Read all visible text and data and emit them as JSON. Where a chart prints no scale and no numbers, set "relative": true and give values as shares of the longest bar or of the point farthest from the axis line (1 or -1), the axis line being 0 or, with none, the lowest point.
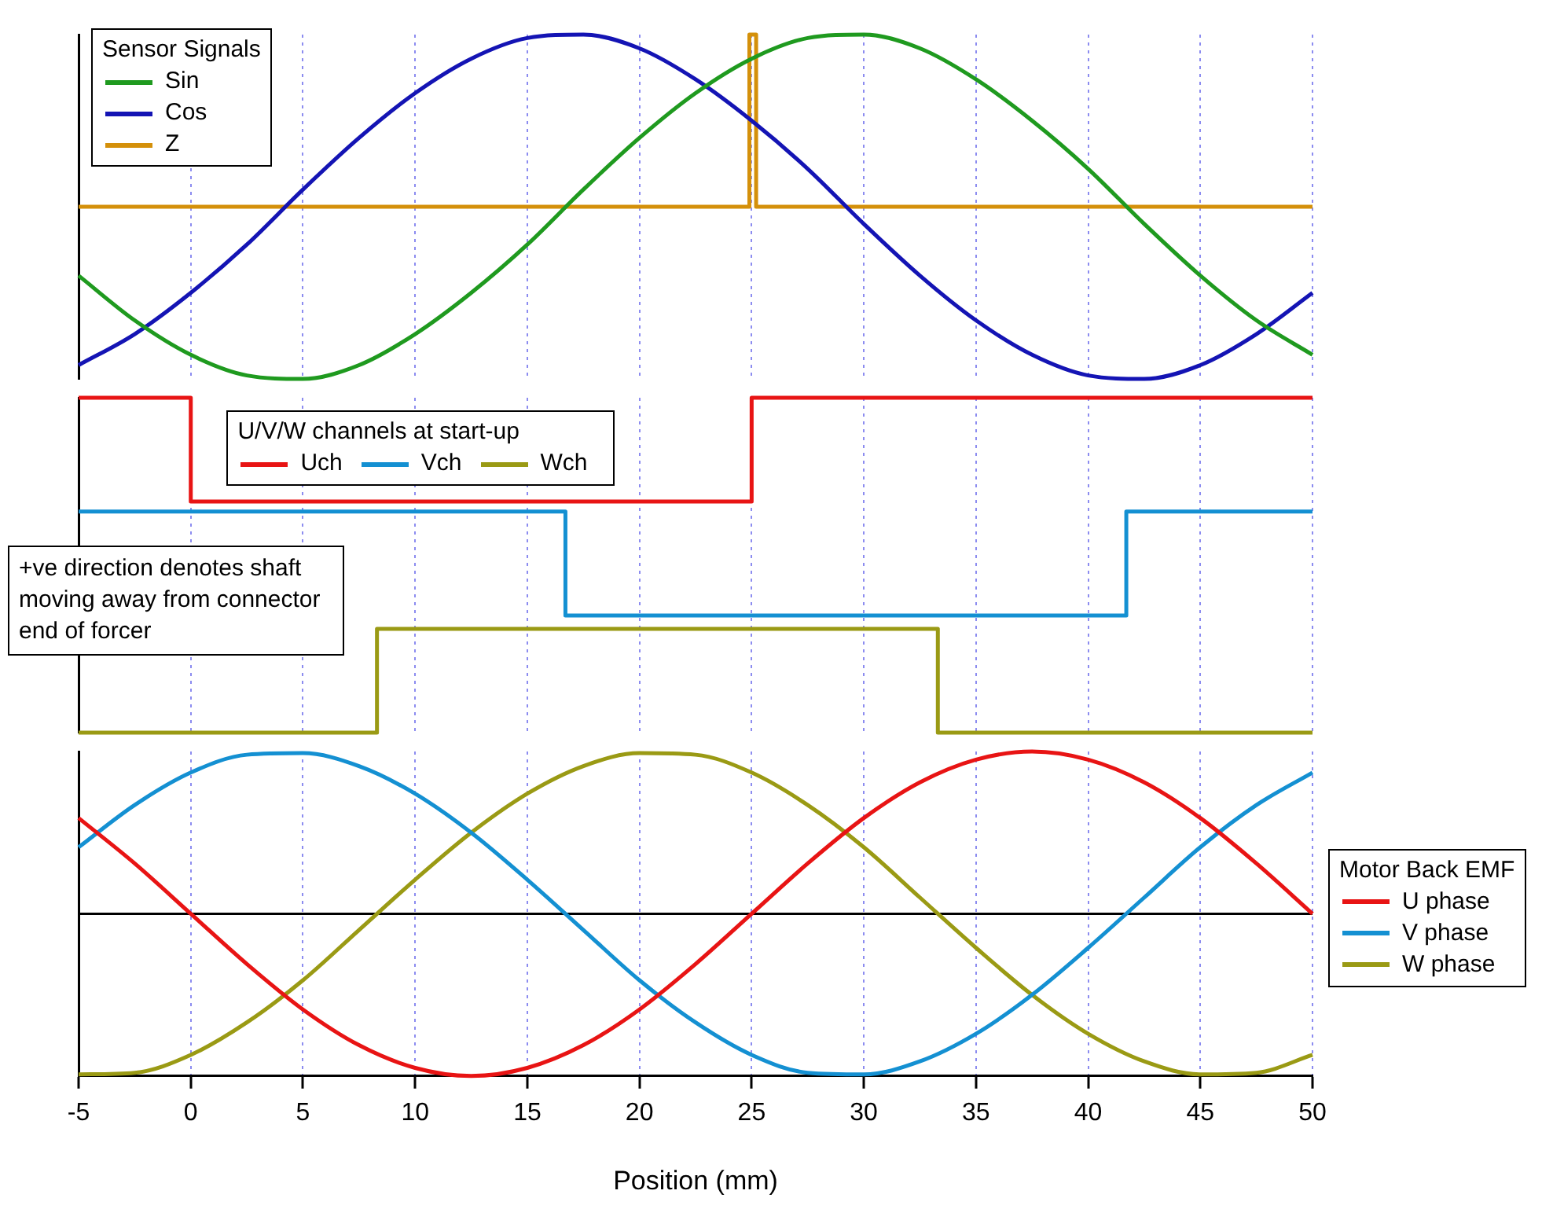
{
  "chart_data": [
    {
      "type": "line",
      "relative": true,
      "x": [
        -5,
        -2.5,
        0,
        2.5,
        5,
        7.5,
        10,
        12.5,
        15,
        17.5,
        20,
        22.5,
        25,
        27.5,
        30,
        32.5,
        35,
        37.5,
        40,
        42.5,
        45,
        47.5,
        50
      ],
      "xlim": [
        -5,
        50
      ],
      "xticks": [
        -5,
        0,
        5,
        10,
        15,
        20,
        25,
        30,
        35,
        40,
        45,
        50
      ],
      "tick_labels": false,
      "grid": "x",
      "legend": "top left",
      "legend_title": "Sensor Signals",
      "series": [
        {
          "name": "Sin",
          "color": "#1f9a1f",
          "values": [
            0.3,
            0.17,
            0.07,
            0.01,
            0.0,
            0.04,
            0.13,
            0.25,
            0.39,
            0.55,
            0.7,
            0.83,
            0.93,
            0.99,
            1.0,
            0.96,
            0.87,
            0.75,
            0.61,
            0.45,
            0.3,
            0.17,
            0.07
          ]
        },
        {
          "name": "Cos",
          "color": "#1414b4",
          "values": [
            0.04,
            0.13,
            0.25,
            0.39,
            0.55,
            0.7,
            0.83,
            0.93,
            0.99,
            1.0,
            0.96,
            0.87,
            0.75,
            0.61,
            0.45,
            0.3,
            0.17,
            0.07,
            0.01,
            0.0,
            0.04,
            0.13,
            0.25
          ]
        },
        {
          "name": "Z",
          "color": "#d4900a",
          "type": "step",
          "x": [
            -5,
            24.9,
            25.2,
            50
          ],
          "values": [
            0.5,
            1,
            0.5,
            0.5
          ]
        }
      ]
    },
    {
      "type": "step",
      "relative": true,
      "xlim": [
        -5,
        50
      ],
      "xticks": [
        -5,
        0,
        5,
        10,
        15,
        20,
        25,
        30,
        35,
        40,
        45,
        50
      ],
      "tick_labels": false,
      "grid": "x",
      "legend": "top",
      "legend_title": "U/V/W channels at start-up",
      "annotations": [
        "+ve direction denotes shaft moving away from connector end of forcer"
      ],
      "series": [
        {
          "name": "Uch",
          "color": "#e81414",
          "x": [
            -5,
            0,
            25,
            50
          ],
          "values": [
            1,
            0.69,
            1,
            1
          ]
        },
        {
          "name": "Vch",
          "color": "#1490d2",
          "x": [
            -5,
            16.7,
            41.7,
            50
          ],
          "values": [
            0.66,
            0.35,
            0.66,
            0.66
          ]
        },
        {
          "name": "Wch",
          "color": "#9a9a14",
          "x": [
            -5,
            8.3,
            33.3,
            50
          ],
          "values": [
            0,
            0.31,
            0,
            0
          ]
        }
      ]
    },
    {
      "type": "line",
      "relative": true,
      "x": [
        -5,
        -2.5,
        0,
        2.5,
        5,
        7.5,
        10,
        12.5,
        15,
        17.5,
        20,
        22.5,
        25,
        27.5,
        30,
        32.5,
        35,
        37.5,
        40,
        42.5,
        45,
        47.5,
        50
      ],
      "xlim": [
        -5,
        50
      ],
      "xticks": [
        -5,
        0,
        5,
        10,
        15,
        20,
        25,
        30,
        35,
        40,
        45,
        50
      ],
      "tick_labels": "x",
      "xlabel": "Position (mm)",
      "grid": "x",
      "legend": "right",
      "legend_title": "Motor Back EMF",
      "ref_lines": [
        {
          "axis": "y",
          "value": 0,
          "color": "#000000"
        }
      ],
      "series": [
        {
          "name": "U phase",
          "color": "#e81414",
          "values": [
            0.59,
            0.31,
            0,
            -0.31,
            -0.59,
            -0.81,
            -0.95,
            -1,
            -0.95,
            -0.81,
            -0.59,
            -0.31,
            0,
            0.31,
            0.59,
            0.81,
            0.95,
            1,
            0.95,
            0.81,
            0.59,
            0.31,
            0
          ]
        },
        {
          "name": "V phase",
          "color": "#1490d2",
          "values": [
            0.41,
            0.67,
            0.87,
            0.98,
            0.99,
            0.91,
            0.74,
            0.5,
            0.21,
            -0.1,
            -0.41,
            -0.67,
            -0.87,
            -0.98,
            -0.99,
            -0.91,
            -0.74,
            -0.5,
            -0.21,
            0.1,
            0.41,
            0.67,
            0.87
          ]
        },
        {
          "name": "W phase",
          "color": "#9a9a14",
          "values": [
            -0.99,
            -0.98,
            -0.87,
            -0.67,
            -0.41,
            -0.1,
            0.21,
            0.5,
            0.74,
            0.91,
            0.99,
            0.98,
            0.87,
            0.67,
            0.41,
            0.1,
            -0.21,
            -0.5,
            -0.74,
            -0.91,
            -0.99,
            -0.98,
            -0.87
          ]
        }
      ]
    }
  ]
}
